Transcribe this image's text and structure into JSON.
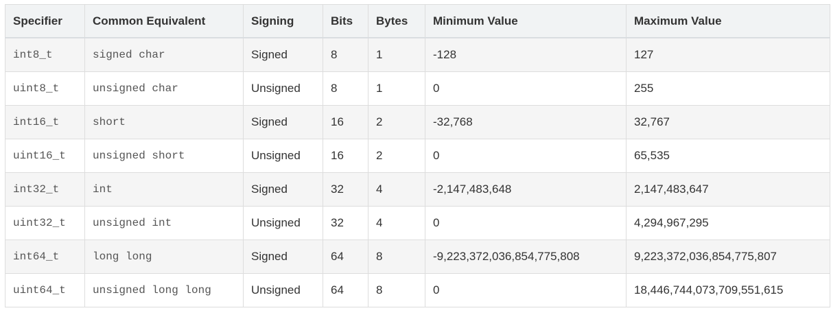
{
  "table": {
    "headers": [
      "Specifier",
      "Common Equivalent",
      "Signing",
      "Bits",
      "Bytes",
      "Minimum Value",
      "Maximum Value"
    ],
    "rows": [
      [
        "int8_t",
        "signed char",
        "Signed",
        "8",
        "1",
        "-128",
        "127"
      ],
      [
        "uint8_t",
        "unsigned char",
        "Unsigned",
        "8",
        "1",
        "0",
        "255"
      ],
      [
        "int16_t",
        "short",
        "Signed",
        "16",
        "2",
        "-32,768",
        "32,767"
      ],
      [
        "uint16_t",
        "unsigned short",
        "Unsigned",
        "16",
        "2",
        "0",
        "65,535"
      ],
      [
        "int32_t",
        "int",
        "Signed",
        "32",
        "4",
        "-2,147,483,648",
        "2,147,483,647"
      ],
      [
        "uint32_t",
        "unsigned int",
        "Unsigned",
        "32",
        "4",
        "0",
        "4,294,967,295"
      ],
      [
        "int64_t",
        "long long",
        "Signed",
        "64",
        "8",
        "-9,223,372,036,854,775,808",
        "9,223,372,036,854,775,807"
      ],
      [
        "uint64_t",
        "unsigned long long",
        "Unsigned",
        "64",
        "8",
        "0",
        "18,446,744,073,709,551,615"
      ]
    ]
  }
}
